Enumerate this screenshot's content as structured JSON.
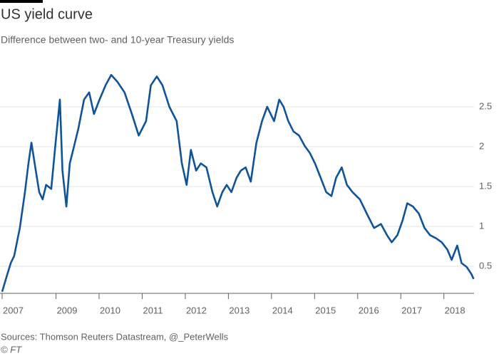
{
  "chart_data": {
    "type": "line",
    "title": "US yield curve",
    "subtitle": "Difference between two- and 10-year Treasury yields",
    "source": "Sources: Thomson Reuters Datastream, @_PeterWells",
    "credit": "© FT",
    "xlim": [
      2007.75,
      2018.7
    ],
    "ylim": [
      0.16,
      3.0
    ],
    "xticks": [
      {
        "value": 2007.75,
        "label": "2007"
      },
      2009,
      2010,
      2011,
      2012,
      2013,
      2014,
      2015,
      2016,
      2017,
      2018
    ],
    "yticks": [
      0.5,
      1,
      1.5,
      2,
      2.5
    ],
    "grid": true,
    "series": [
      {
        "color": "#0f5499",
        "x": [
          2007.75,
          2007.87,
          2007.95,
          2008.03,
          2008.16,
          2008.28,
          2008.36,
          2008.43,
          2008.53,
          2008.61,
          2008.69,
          2008.77,
          2008.89,
          2008.99,
          2009.09,
          2009.15,
          2009.24,
          2009.32,
          2009.42,
          2009.52,
          2009.65,
          2009.77,
          2009.88,
          2010.01,
          2010.15,
          2010.28,
          2010.43,
          2010.59,
          2010.76,
          2010.92,
          2011.09,
          2011.2,
          2011.34,
          2011.47,
          2011.63,
          2011.8,
          2011.92,
          2012.03,
          2012.13,
          2012.25,
          2012.36,
          2012.49,
          2012.63,
          2012.74,
          2012.86,
          2012.96,
          2013.07,
          2013.19,
          2013.29,
          2013.4,
          2013.52,
          2013.65,
          2013.78,
          2013.9,
          2014.06,
          2014.18,
          2014.28,
          2014.39,
          2014.51,
          2014.64,
          2014.77,
          2014.89,
          2015.01,
          2015.14,
          2015.27,
          2015.39,
          2015.5,
          2015.63,
          2015.75,
          2015.88,
          2016.05,
          2016.21,
          2016.38,
          2016.54,
          2016.68,
          2016.79,
          2016.92,
          2017.04,
          2017.15,
          2017.28,
          2017.42,
          2017.55,
          2017.68,
          2017.82,
          2017.95,
          2018.08,
          2018.18,
          2018.31,
          2018.41,
          2018.53,
          2018.64,
          2018.69
        ],
        "values": [
          0.18,
          0.4,
          0.54,
          0.63,
          0.98,
          1.43,
          1.79,
          2.05,
          1.7,
          1.43,
          1.34,
          1.52,
          1.47,
          2.05,
          2.59,
          1.7,
          1.25,
          1.79,
          2.01,
          2.23,
          2.59,
          2.68,
          2.41,
          2.59,
          2.77,
          2.9,
          2.81,
          2.68,
          2.41,
          2.14,
          2.32,
          2.77,
          2.88,
          2.77,
          2.5,
          2.32,
          1.79,
          1.52,
          1.96,
          1.7,
          1.79,
          1.74,
          1.43,
          1.25,
          1.43,
          1.52,
          1.43,
          1.61,
          1.7,
          1.74,
          1.56,
          2.05,
          2.32,
          2.5,
          2.32,
          2.59,
          2.5,
          2.32,
          2.19,
          2.14,
          2.01,
          1.92,
          1.79,
          1.61,
          1.43,
          1.38,
          1.61,
          1.74,
          1.52,
          1.43,
          1.34,
          1.16,
          0.98,
          1.03,
          0.89,
          0.8,
          0.89,
          1.07,
          1.29,
          1.25,
          1.16,
          0.98,
          0.89,
          0.85,
          0.8,
          0.71,
          0.58,
          0.76,
          0.54,
          0.49,
          0.4,
          0.34
        ]
      }
    ]
  }
}
